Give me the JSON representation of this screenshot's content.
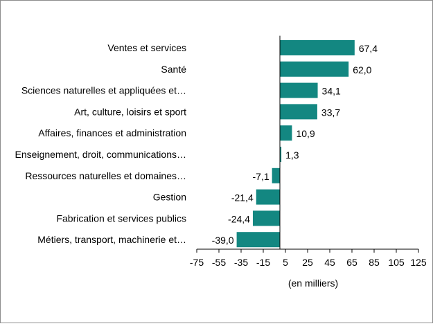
{
  "chart_data": {
    "type": "bar",
    "orientation": "horizontal",
    "categories": [
      "Ventes et services",
      "Santé",
      "Sciences naturelles et appliquées et…",
      "Art, culture, loisirs et sport",
      "Affaires, finances et administration",
      "Enseignement, droit, communications…",
      "Ressources naturelles et domaines…",
      "Gestion",
      "Fabrication et services publics",
      "Métiers, transport, machinerie et…"
    ],
    "values": [
      67.4,
      62.0,
      34.1,
      33.7,
      10.9,
      1.3,
      -7.1,
      -21.4,
      -24.4,
      -39.0
    ],
    "value_labels": [
      "67,4",
      "62,0",
      "34,1",
      "33,7",
      "10,9",
      "1,3",
      "-7,1",
      "-21,4",
      "-24,4",
      "-39,0"
    ],
    "xlim": [
      -75,
      125
    ],
    "xticks": [
      -75,
      -55,
      -35,
      -15,
      5,
      25,
      45,
      65,
      85,
      105,
      125
    ],
    "xtick_labels": [
      "-75",
      "-55",
      "-35",
      "-15",
      "5",
      "25",
      "45",
      "65",
      "85",
      "105",
      "125"
    ],
    "xlabel": "(en milliers)",
    "bar_color": "#138781",
    "grid": false,
    "legend": "none"
  }
}
